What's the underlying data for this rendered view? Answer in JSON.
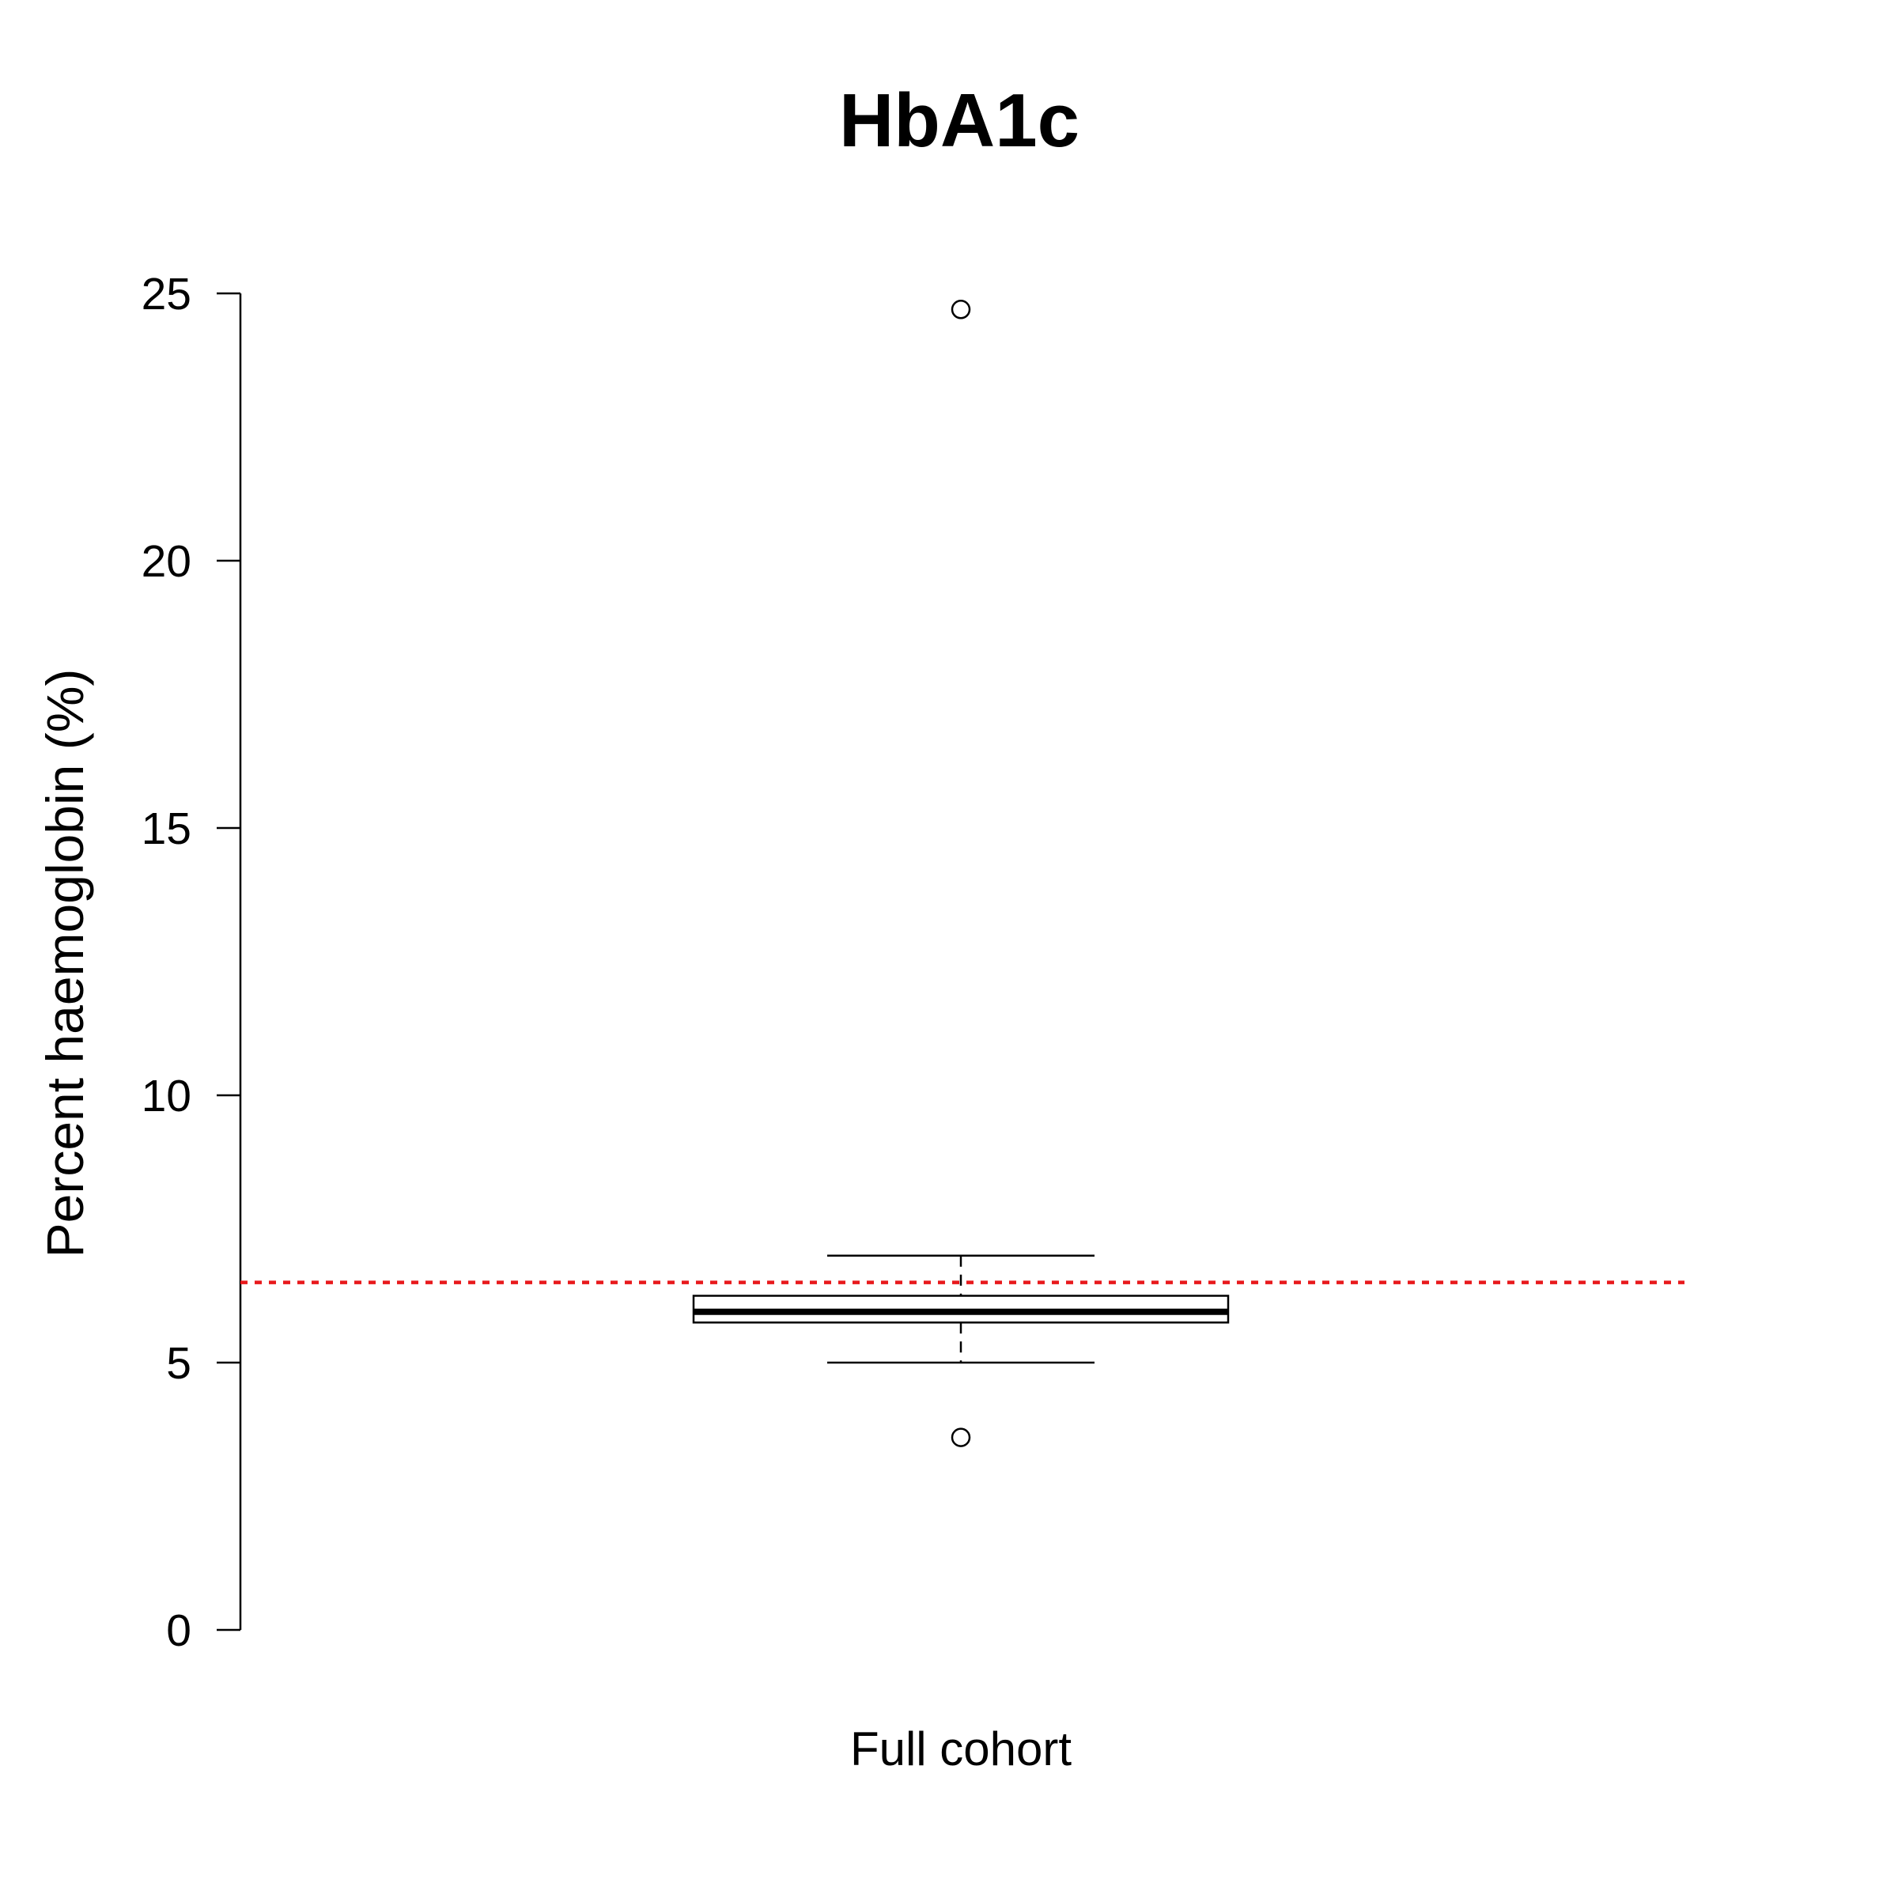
{
  "chart_data": {
    "type": "box",
    "title": "HbA1c",
    "ylabel": "Percent haemoglobin (%)",
    "ylim": [
      0,
      25
    ],
    "yticks": [
      0,
      5,
      10,
      15,
      20,
      25
    ],
    "categories": [
      "Full cohort"
    ],
    "boxes": [
      {
        "category": "Full cohort",
        "whisker_low": 5.0,
        "q1": 5.75,
        "median": 5.95,
        "q3": 6.25,
        "whisker_high": 7.0,
        "outliers": [
          24.7,
          3.6
        ]
      }
    ],
    "reference_line": {
      "y": 6.5,
      "color": "#e8191c",
      "style": "dotted"
    },
    "grid": false,
    "legend": "none"
  }
}
